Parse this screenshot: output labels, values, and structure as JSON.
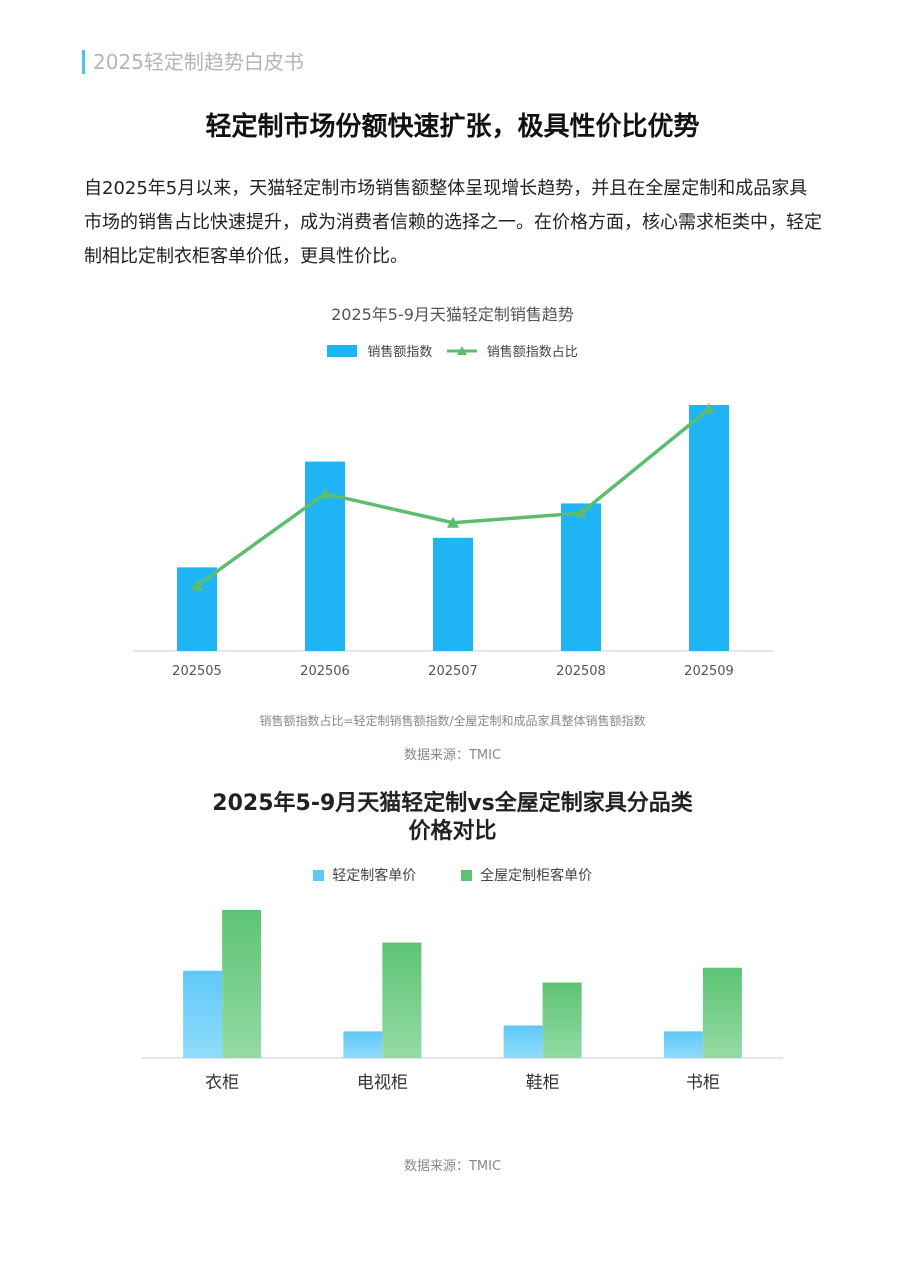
{
  "header": {
    "label": "2025轻定制趋势白皮书",
    "accent_color": "#4fc3e0"
  },
  "page_title": "轻定制市场份额快速扩张，极具性价比优势",
  "paragraph": "自2025年5月以来，天猫轻定制市场销售额整体呈现增长趋势，并且在全屋定制和成品家具市场的销售占比快速提升，成为消费者信赖的选择之一。在价格方面，核心需求柜类中，轻定制相比定制衣柜客单价低，更具性价比。",
  "chart_data": [
    {
      "type": "bar+line",
      "title": "2025年5-9月天猫轻定制销售趋势",
      "categories": [
        "202505",
        "202506",
        "202507",
        "202508",
        "202509"
      ],
      "series": [
        {
          "name": "销售额指数",
          "type": "bar",
          "color": "#1eb4f5",
          "values": [
            34,
            77,
            46,
            60,
            100
          ]
        },
        {
          "name": "销售额指数占比",
          "type": "line",
          "color": "#5cbd6e",
          "marker": "triangle",
          "values": [
            27,
            65,
            53,
            57,
            100
          ]
        }
      ],
      "axis_labels_shown": false,
      "grid": false,
      "legend": "top",
      "footnote": "销售额指数占比=轻定制销售额指数/全屋定制和成品家具整体销售额指数",
      "source": "数据来源：TMIC"
    },
    {
      "type": "bar",
      "title": "2025年5-9月天猫轻定制vs全屋定制家具分品类",
      "title_line2": "价格对比",
      "categories": [
        "衣柜",
        "电视柜",
        "鞋柜",
        "书柜"
      ],
      "series": [
        {
          "name": "轻定制客单价",
          "color": "#5fc8f8",
          "values": [
            59,
            18,
            22,
            18
          ]
        },
        {
          "name": "全屋定制柜客单价",
          "color": "#5dc374",
          "values": [
            100,
            78,
            51,
            61
          ]
        }
      ],
      "axis_labels_shown": false,
      "grid": false,
      "legend": "top",
      "source": "数据来源：TMIC"
    }
  ]
}
